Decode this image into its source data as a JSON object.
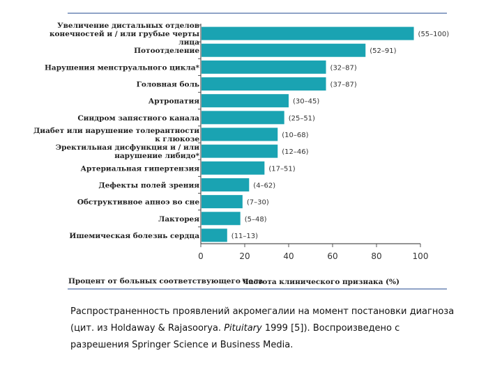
{
  "chart_data": {
    "type": "bar",
    "orientation": "horizontal",
    "categories": [
      [
        "Увеличение дистальных отделов",
        "конечностей и / или грубые черты",
        "лица"
      ],
      [
        "Потоотделение"
      ],
      [
        "Нарушения менструального цикла*"
      ],
      [
        "Головная боль"
      ],
      [
        "Артропатия"
      ],
      [
        "Синдром запястного канала"
      ],
      [
        "Диабет или нарушение толерантности",
        "к глюкозе"
      ],
      [
        "Эректильная дисфункция и / или",
        "нарушение либидо*"
      ],
      [
        "Артериальная гипертензия"
      ],
      [
        "Дефекты полей зрения"
      ],
      [
        "Обструктивное апноэ во сне"
      ],
      [
        "Лакторея"
      ],
      [
        "Ишемическая болезнь сердца"
      ]
    ],
    "values": [
      97,
      75,
      57,
      57,
      40,
      38,
      35,
      35,
      29,
      22,
      19,
      18,
      12
    ],
    "range_labels": [
      "(55–100)",
      "(52–91)",
      "(32–87)",
      "(37–87)",
      "(30–45)",
      "(25–51)",
      "(10–68)",
      "(12–46)",
      "(17–51)",
      "(4–62)",
      "(7–30)",
      "(5–48)",
      "(11–13)"
    ],
    "xlim": [
      0,
      100
    ],
    "xticks": [
      0,
      20,
      40,
      60,
      80,
      100
    ],
    "xlabel": "Частота клинического признака (%)",
    "note": "Процент от больных соответствующего пола",
    "bar_color": "#1aa3b2",
    "axis_color": "#555555"
  },
  "caption": {
    "part1": "Распространенность проявлений акромегалии на момент постановки диагноза (цит. из Holdaway & Rajasoorya. ",
    "journal": "Pituitary",
    "part2": " 1999 [5]). Воспроизведено с разрешения Springer Science и Business Media."
  }
}
